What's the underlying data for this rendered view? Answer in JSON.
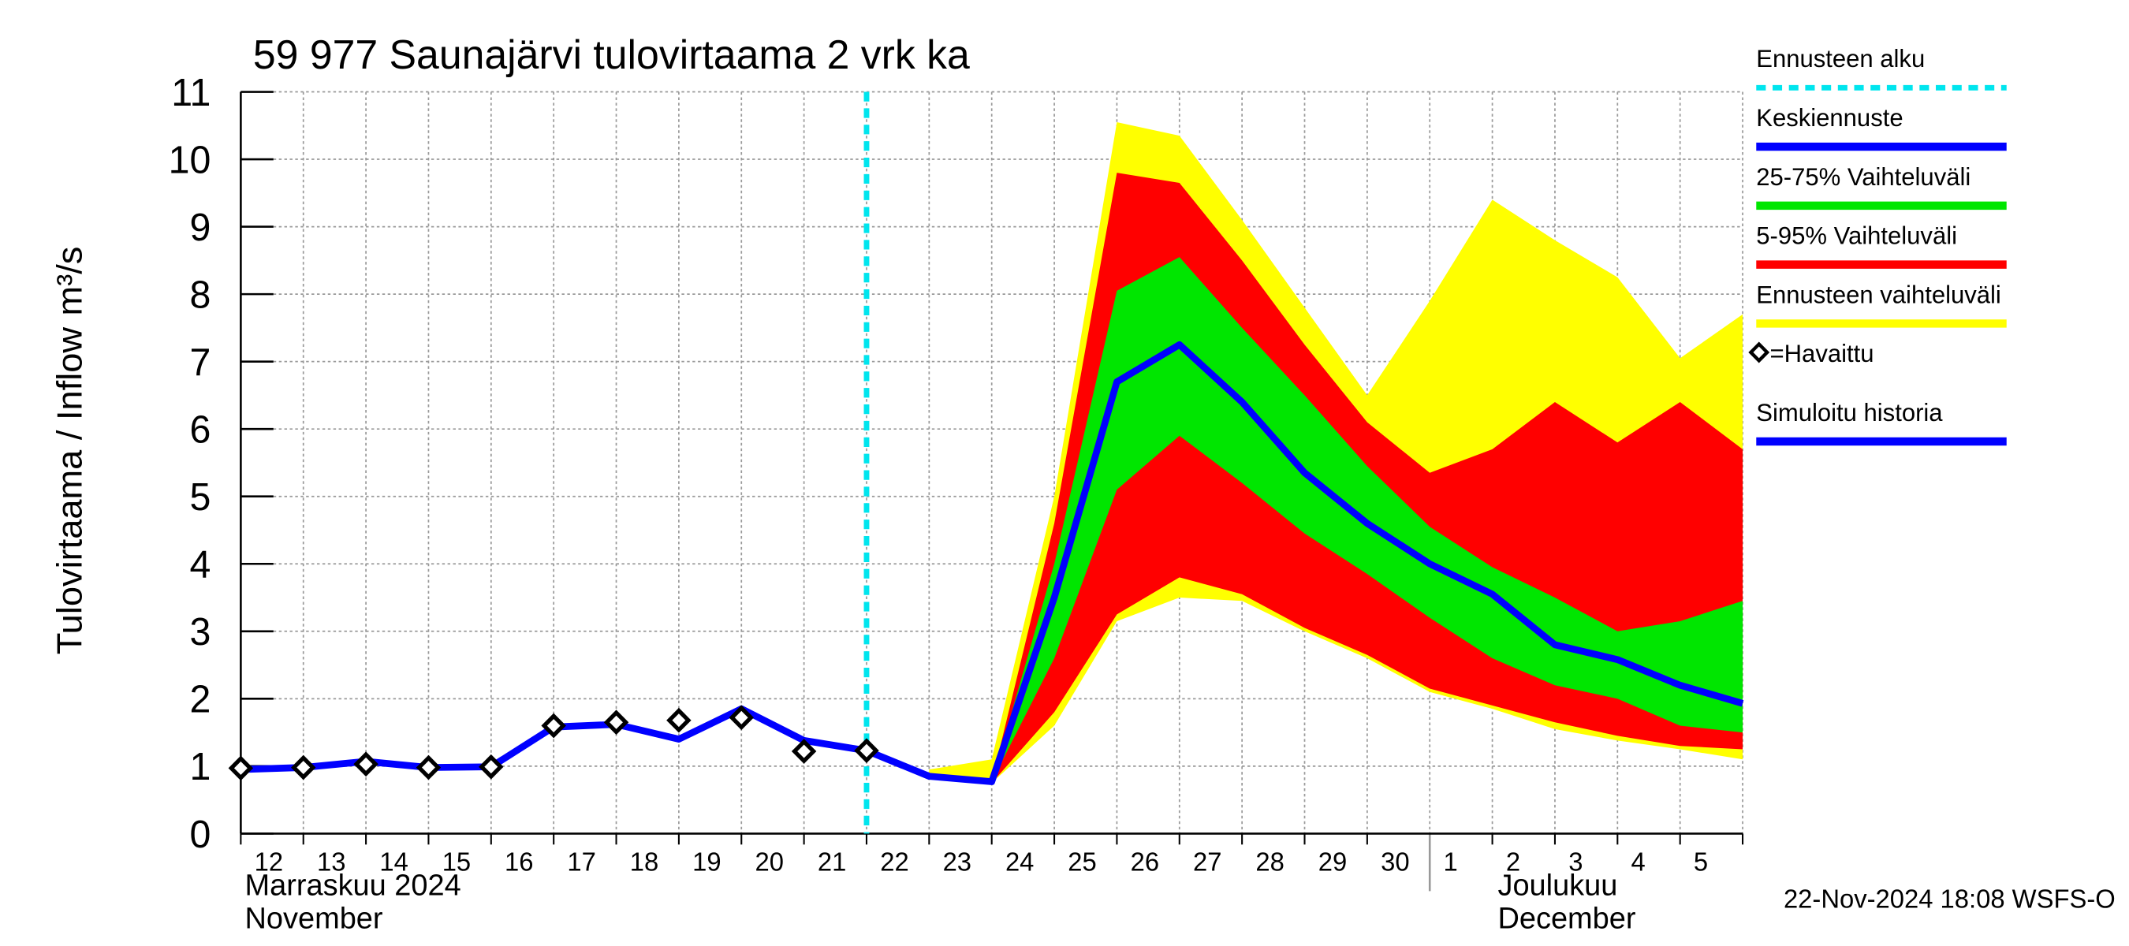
{
  "chart_data": {
    "type": "line",
    "title": "59 977 Saunajärvi tulovirtaama 2 vrk ka",
    "y_label": "Tulovirtaama / Inflow",
    "y_unit": "m³/s",
    "x_month_labels": [
      {
        "lines": [
          "Marraskuu 2024",
          "November"
        ],
        "at": "12"
      },
      {
        "lines": [
          "Joulukuu",
          "December"
        ],
        "at": "1"
      }
    ],
    "timestamp": "22-Nov-2024 18:08 WSFS-O",
    "categories": [
      "12",
      "13",
      "14",
      "15",
      "16",
      "17",
      "18",
      "19",
      "20",
      "21",
      "22",
      "23",
      "24",
      "25",
      "26",
      "27",
      "28",
      "29",
      "30",
      "1",
      "2",
      "3",
      "4",
      "5",
      null
    ],
    "ylim": [
      0,
      11
    ],
    "yticks": [
      0,
      1,
      2,
      3,
      4,
      5,
      6,
      7,
      8,
      9,
      10,
      11
    ],
    "grid": true,
    "forecast_start": {
      "name": "Ennusteen alku",
      "color": "#00e5ee",
      "at": "22"
    },
    "bands": [
      {
        "name": "Ennusteen vaihteluväli",
        "color": "#ffff00",
        "upper": [
          null,
          null,
          null,
          null,
          null,
          null,
          null,
          null,
          null,
          null,
          null,
          0.95,
          1.1,
          5.0,
          10.55,
          10.35,
          9.1,
          7.8,
          6.5,
          7.9,
          9.4,
          8.8,
          8.25,
          7.05,
          7.7
        ],
        "lower": [
          null,
          null,
          null,
          null,
          null,
          null,
          null,
          null,
          null,
          null,
          null,
          0.85,
          0.75,
          1.6,
          3.15,
          3.5,
          3.45,
          3.0,
          2.6,
          2.1,
          1.85,
          1.55,
          1.38,
          1.25,
          1.1
        ]
      },
      {
        "name": "5-95% Vaihteluväli",
        "color": "#ff0000",
        "upper": [
          null,
          null,
          null,
          null,
          null,
          null,
          null,
          null,
          null,
          null,
          null,
          0.85,
          0.77,
          4.6,
          9.8,
          9.65,
          8.5,
          7.25,
          6.1,
          5.35,
          5.7,
          6.4,
          5.8,
          6.4,
          5.7
        ],
        "lower": [
          null,
          null,
          null,
          null,
          null,
          null,
          null,
          null,
          null,
          null,
          null,
          0.85,
          0.75,
          1.8,
          3.25,
          3.8,
          3.55,
          3.05,
          2.65,
          2.15,
          1.9,
          1.65,
          1.45,
          1.3,
          1.25
        ]
      },
      {
        "name": "25-75% Vaihteluväli",
        "color": "#00e600",
        "upper": [
          null,
          null,
          null,
          null,
          null,
          null,
          null,
          null,
          null,
          null,
          null,
          0.85,
          0.77,
          4.0,
          8.05,
          8.55,
          7.5,
          6.5,
          5.45,
          4.55,
          3.95,
          3.5,
          3.0,
          3.15,
          3.45
        ],
        "lower": [
          null,
          null,
          null,
          null,
          null,
          null,
          null,
          null,
          null,
          null,
          null,
          0.85,
          0.77,
          2.6,
          5.1,
          5.9,
          5.2,
          4.45,
          3.85,
          3.2,
          2.6,
          2.2,
          2.0,
          1.6,
          1.5
        ]
      }
    ],
    "series": [
      {
        "name": "Simuloitu historia",
        "color": "#0000ff",
        "values": [
          0.95,
          0.98,
          1.07,
          0.98,
          0.99,
          1.58,
          1.62,
          1.4,
          1.85,
          1.38,
          1.23,
          null,
          null,
          null,
          null,
          null,
          null,
          null,
          null,
          null,
          null,
          null,
          null,
          null,
          null
        ]
      },
      {
        "name": "Keskiennuste",
        "color": "#0000ff",
        "values": [
          null,
          null,
          null,
          null,
          null,
          null,
          null,
          null,
          null,
          null,
          1.23,
          0.85,
          0.77,
          3.5,
          6.7,
          7.25,
          6.4,
          5.35,
          4.6,
          4.0,
          3.55,
          2.8,
          2.58,
          2.2,
          1.93
        ]
      },
      {
        "name": "=Havaittu",
        "color": "#000000",
        "marker": "diamond",
        "values": [
          0.97,
          0.98,
          1.03,
          0.98,
          0.99,
          1.6,
          1.65,
          1.68,
          1.72,
          1.22,
          1.23,
          null,
          null,
          null,
          null,
          null,
          null,
          null,
          null,
          null,
          null,
          null,
          null,
          null,
          null
        ]
      }
    ],
    "legend_order": [
      "forecast_start",
      "series.1",
      "bands.2",
      "bands.1",
      "bands.0",
      "series.2",
      "series.0"
    ]
  }
}
